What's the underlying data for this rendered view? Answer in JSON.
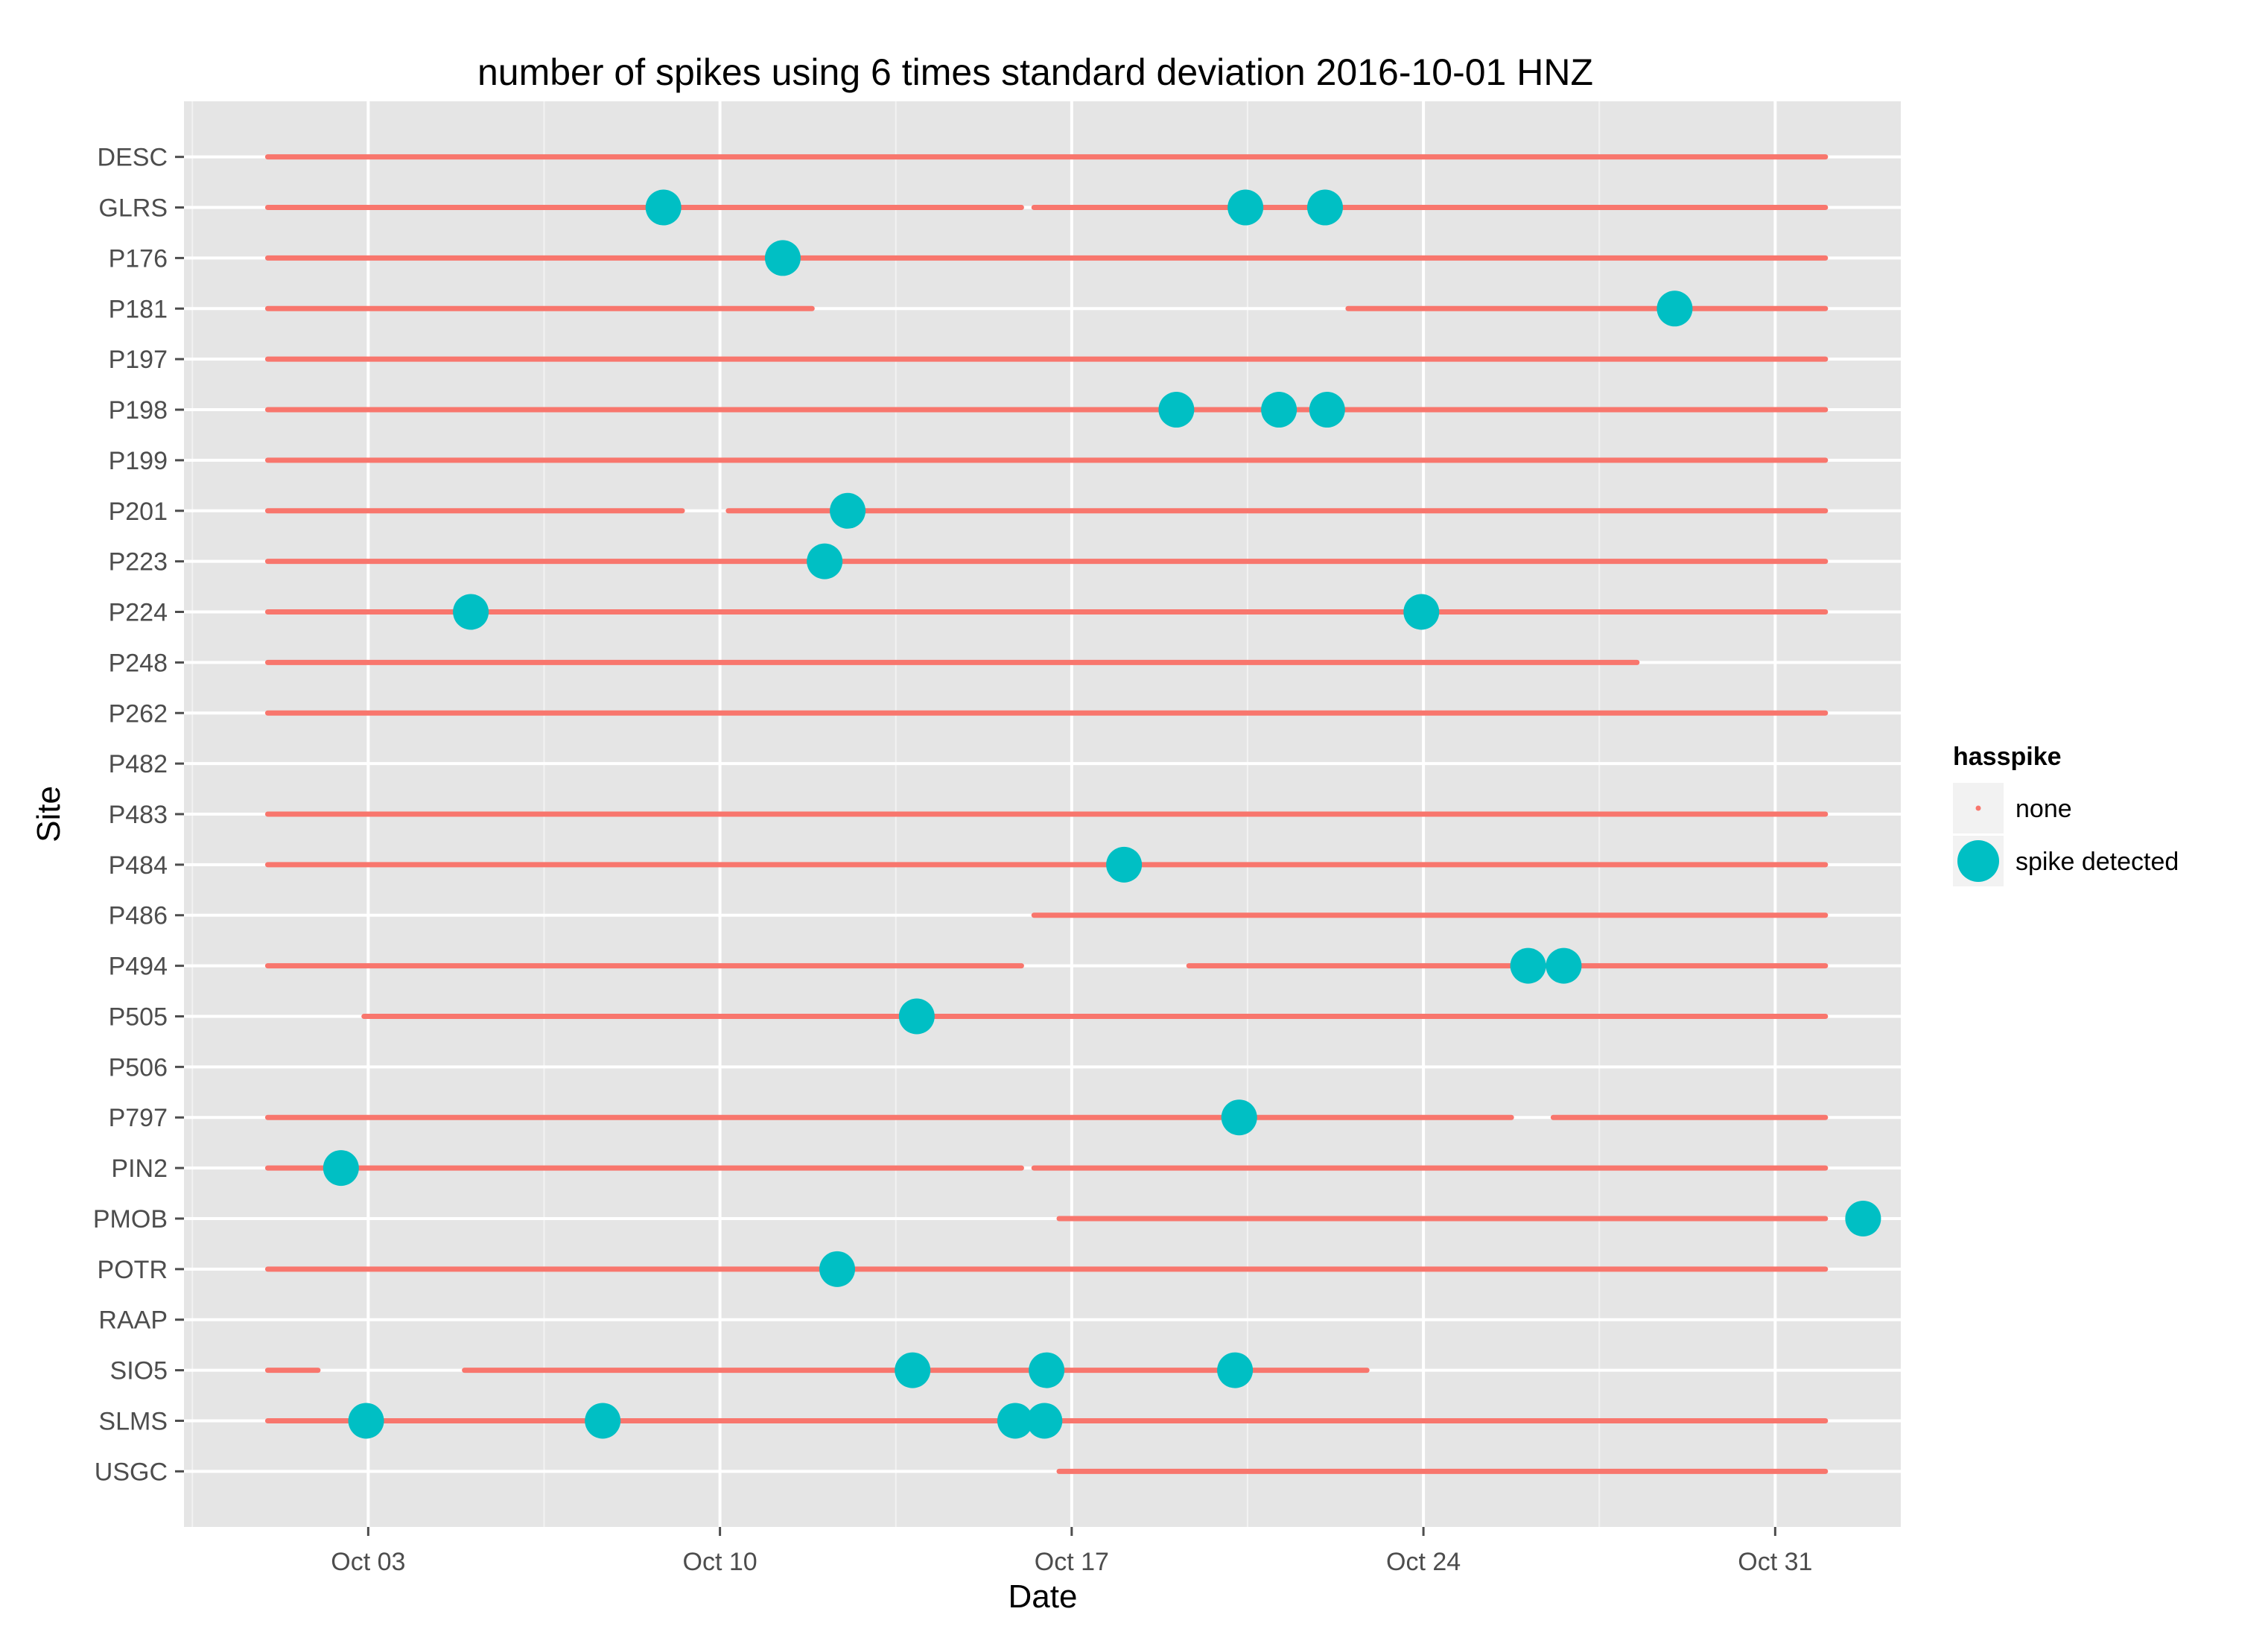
{
  "chart_data": {
    "type": "scatter",
    "title": "number of spikes using  6 times standard deviation 2016-10-01 HNZ",
    "xlabel": "Date",
    "ylabel": "Site",
    "x_ticks": [
      {
        "date": "2016-10-03",
        "label": "Oct 03"
      },
      {
        "date": "2016-10-10",
        "label": "Oct 10"
      },
      {
        "date": "2016-10-17",
        "label": "Oct 17"
      },
      {
        "date": "2016-10-24",
        "label": "Oct 24"
      },
      {
        "date": "2016-10-31",
        "label": "Oct 31"
      }
    ],
    "xlim": [
      "2016-09-29 08:00",
      "2016-11-02 12:00"
    ],
    "grid": true,
    "legend": {
      "title": "hasspike",
      "placement": "right",
      "entries": [
        {
          "label": "none",
          "color": "#F8766D"
        },
        {
          "label": "spike detected",
          "color": "#00BFC4"
        }
      ]
    },
    "sites": [
      "USGC",
      "SLMS",
      "SIO5",
      "RAAP",
      "POTR",
      "PMOB",
      "PIN2",
      "P797",
      "P506",
      "P505",
      "P494",
      "P486",
      "P484",
      "P483",
      "P482",
      "P262",
      "P248",
      "P224",
      "P223",
      "P201",
      "P199",
      "P198",
      "P197",
      "P181",
      "P176",
      "GLRS",
      "DESC"
    ],
    "none_segments": {
      "USGC": [
        [
          "2016-10-16 18:00",
          "2016-11-01 00:00"
        ]
      ],
      "SLMS": [
        [
          "2016-10-01 00:00",
          "2016-11-01 00:00"
        ]
      ],
      "SIO5": [
        [
          "2016-10-01 00:00",
          "2016-10-02 00:00"
        ],
        [
          "2016-10-04 22:00",
          "2016-10-22 21:00"
        ]
      ],
      "POTR": [
        [
          "2016-10-01 00:00",
          "2016-11-01 00:00"
        ]
      ],
      "PMOB": [
        [
          "2016-10-16 18:00",
          "2016-11-01 00:00"
        ]
      ],
      "PIN2": [
        [
          "2016-10-01 00:00",
          "2016-10-16 00:00"
        ],
        [
          "2016-10-16 06:00",
          "2016-11-01 00:00"
        ]
      ],
      "P797": [
        [
          "2016-10-01 00:00",
          "2016-10-25 18:00"
        ],
        [
          "2016-10-26 14:00",
          "2016-11-01 00:00"
        ]
      ],
      "P505": [
        [
          "2016-10-02 22:00",
          "2016-11-01 00:00"
        ]
      ],
      "P494": [
        [
          "2016-10-01 00:00",
          "2016-10-16 00:00"
        ],
        [
          "2016-10-19 08:00",
          "2016-11-01 00:00"
        ]
      ],
      "P486": [
        [
          "2016-10-16 06:00",
          "2016-11-01 00:00"
        ]
      ],
      "P484": [
        [
          "2016-10-01 00:00",
          "2016-11-01 00:00"
        ]
      ],
      "P483": [
        [
          "2016-10-01 00:00",
          "2016-11-01 00:00"
        ]
      ],
      "P262": [
        [
          "2016-10-01 00:00",
          "2016-11-01 00:00"
        ]
      ],
      "P248": [
        [
          "2016-10-01 00:00",
          "2016-10-28 06:00"
        ]
      ],
      "P224": [
        [
          "2016-10-01 00:00",
          "2016-11-01 00:00"
        ]
      ],
      "P223": [
        [
          "2016-10-01 00:00",
          "2016-11-01 00:00"
        ]
      ],
      "P201": [
        [
          "2016-10-01 00:00",
          "2016-10-09 06:00"
        ],
        [
          "2016-10-10 04:00",
          "2016-11-01 00:00"
        ]
      ],
      "P199": [
        [
          "2016-10-01 00:00",
          "2016-11-01 00:00"
        ]
      ],
      "P198": [
        [
          "2016-10-01 00:00",
          "2016-11-01 00:00"
        ]
      ],
      "P197": [
        [
          "2016-10-01 00:00",
          "2016-11-01 00:00"
        ]
      ],
      "P181": [
        [
          "2016-10-01 00:00",
          "2016-10-11 20:00"
        ],
        [
          "2016-10-22 12:00",
          "2016-11-01 00:00"
        ]
      ],
      "P176": [
        [
          "2016-10-01 00:00",
          "2016-11-01 00:00"
        ]
      ],
      "GLRS": [
        [
          "2016-10-01 00:00",
          "2016-10-16 00:00"
        ],
        [
          "2016-10-16 06:00",
          "2016-11-01 00:00"
        ]
      ],
      "DESC": [
        [
          "2016-10-01 00:00",
          "2016-11-01 00:00"
        ]
      ]
    },
    "spikes": [
      {
        "site": "SLMS",
        "date": "2016-10-02 23:00"
      },
      {
        "site": "SLMS",
        "date": "2016-10-07 16:00"
      },
      {
        "site": "SLMS",
        "date": "2016-10-15 21:00"
      },
      {
        "site": "SLMS",
        "date": "2016-10-16 11:00"
      },
      {
        "site": "SIO5",
        "date": "2016-10-13 20:00"
      },
      {
        "site": "SIO5",
        "date": "2016-10-16 12:00"
      },
      {
        "site": "SIO5",
        "date": "2016-10-20 06:00"
      },
      {
        "site": "POTR",
        "date": "2016-10-12 08:00"
      },
      {
        "site": "PMOB",
        "date": "2016-11-01 18:00"
      },
      {
        "site": "PIN2",
        "date": "2016-10-02 11:00"
      },
      {
        "site": "P797",
        "date": "2016-10-20 08:00"
      },
      {
        "site": "P505",
        "date": "2016-10-13 22:00"
      },
      {
        "site": "P494",
        "date": "2016-10-26 02:00"
      },
      {
        "site": "P494",
        "date": "2016-10-26 19:00"
      },
      {
        "site": "P484",
        "date": "2016-10-18 01:00"
      },
      {
        "site": "P224",
        "date": "2016-10-05 01:00"
      },
      {
        "site": "P224",
        "date": "2016-10-23 23:00"
      },
      {
        "site": "P223",
        "date": "2016-10-12 02:00"
      },
      {
        "site": "P201",
        "date": "2016-10-12 13:00"
      },
      {
        "site": "P198",
        "date": "2016-10-19 02:00"
      },
      {
        "site": "P198",
        "date": "2016-10-21 03:00"
      },
      {
        "site": "P198",
        "date": "2016-10-22 02:00"
      },
      {
        "site": "P181",
        "date": "2016-10-29 00:00"
      },
      {
        "site": "P176",
        "date": "2016-10-11 06:00"
      },
      {
        "site": "GLRS",
        "date": "2016-10-08 21:00"
      },
      {
        "site": "GLRS",
        "date": "2016-10-20 11:00"
      },
      {
        "site": "GLRS",
        "date": "2016-10-22 01:00"
      }
    ]
  }
}
